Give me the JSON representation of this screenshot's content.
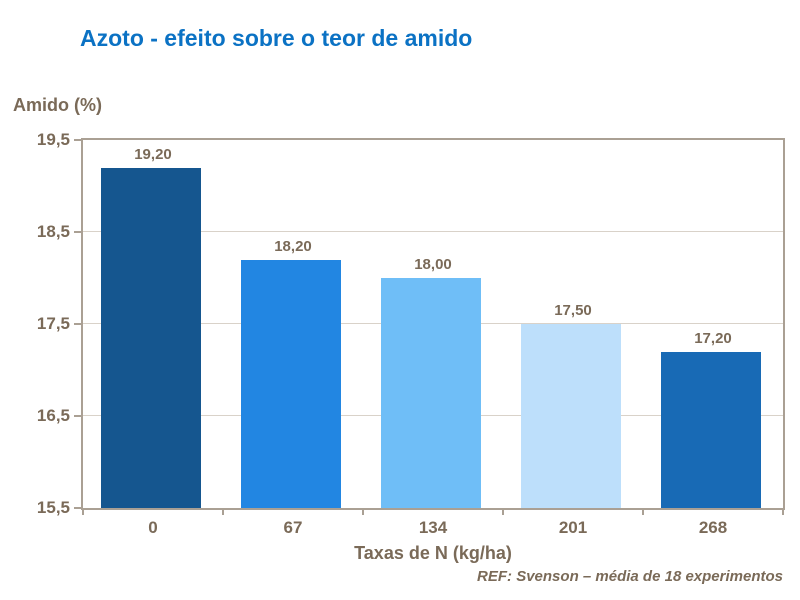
{
  "title": "Azoto - efeito sobre o teor de amido",
  "colors": {
    "title_blue": "#0b72c4",
    "label_brown": "#7a6a58",
    "axis_border": "#aaa094",
    "gridline": "#d9d2c9",
    "background": "#ffffff"
  },
  "chart_data": {
    "type": "bar",
    "title": "Azoto - efeito sobre o teor de amido",
    "ylabel": "Amido (%)",
    "xlabel": "Taxas de N (kg/ha)",
    "categories": [
      "0",
      "67",
      "134",
      "201",
      "268"
    ],
    "values": [
      19.2,
      18.2,
      18.0,
      17.5,
      17.2
    ],
    "value_labels": [
      "19,20",
      "18,20",
      "18,00",
      "17,50",
      "17,20"
    ],
    "bar_colors": [
      "#15568f",
      "#2286e2",
      "#6fbef7",
      "#bddffb",
      "#186ab5"
    ],
    "y_ticks": [
      {
        "label": "19,5",
        "value": 19.5
      },
      {
        "label": "18,5",
        "value": 18.5
      },
      {
        "label": "17,5",
        "value": 17.5
      },
      {
        "label": "16,5",
        "value": 16.5
      },
      {
        "label": "15,5",
        "value": 15.5
      }
    ],
    "ylim": [
      15.5,
      19.5
    ],
    "grid": true,
    "legend": false,
    "footnote": "REF: Svenson – média de 18 experimentos"
  }
}
